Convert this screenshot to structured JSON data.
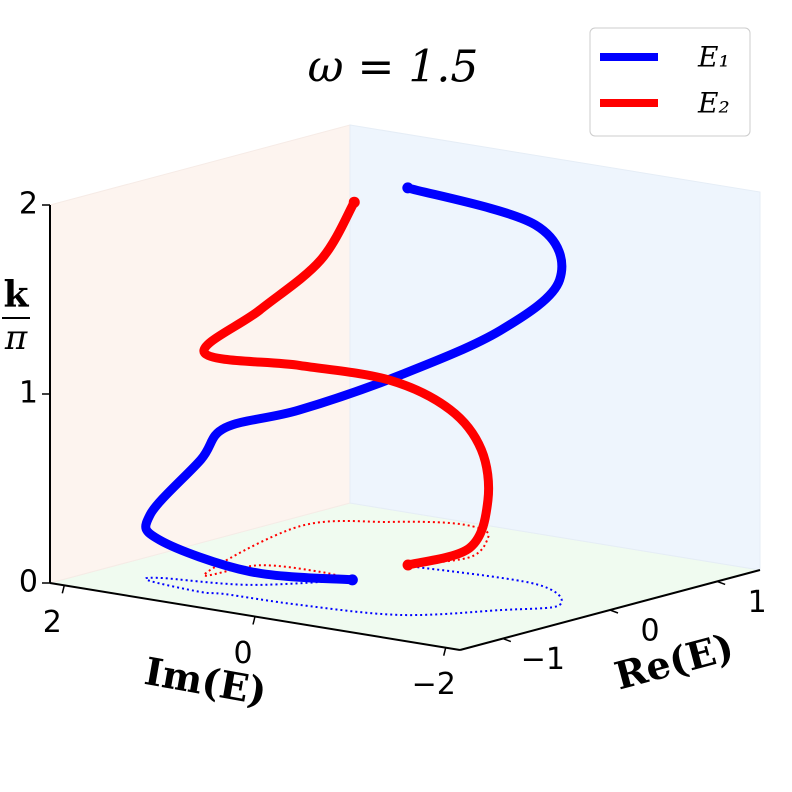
{
  "chart_data": {
    "type": "line3d",
    "title": "ω = 1.5",
    "xlabel": "Re(E)",
    "ylabel": "Im(E)",
    "zlabel": {
      "numerator": "k",
      "denominator": "π"
    },
    "xlim": [
      -1.4,
      1.4
    ],
    "ylim": [
      -2.15,
      2.15
    ],
    "zlim": [
      0,
      2
    ],
    "xticks": [
      {
        "value": -1,
        "label": "−1"
      },
      0,
      1
    ],
    "yticks": [
      {
        "value": -2,
        "label": "−2"
      },
      0,
      2
    ],
    "zticks": [
      0,
      1,
      2
    ],
    "grid": false,
    "legend": "upper right",
    "floor_projection": true,
    "series": [
      {
        "name": "E₁",
        "color": "#0000ff",
        "x": [
          -0.26,
          -0.73,
          -0.9,
          -1.0,
          -1.06,
          -1.02,
          -0.99,
          -0.85,
          -0.39,
          -0.07,
          0.3,
          0.24
        ],
        "y": [
          0.26,
          0.8,
          1.56,
          1.55,
          0.95,
          0.74,
          0.0,
          -0.91,
          -1.44,
          -1.7,
          -1.03,
          0.24
        ],
        "z": [
          0,
          0.07,
          0.2,
          0.35,
          0.7,
          0.88,
          1.03,
          1.27,
          1.48,
          1.72,
          1.9,
          2
        ]
      },
      {
        "name": "E₂",
        "color": "#ff0000",
        "x": [
          0.26,
          0.65,
          1.13,
          1.3,
          1.32,
          1.13,
          0.72,
          -0.66,
          -0.27,
          -0.2,
          -0.26
        ],
        "y": [
          0.26,
          0.05,
          0.4,
          0.66,
          1.01,
          1.43,
          1.91,
          1.36,
          1.22,
          0.66,
          0.24
        ],
        "z": [
          0,
          0.05,
          0.2,
          0.42,
          0.6,
          0.75,
          0.85,
          1.17,
          1.35,
          1.65,
          2
        ]
      }
    ]
  }
}
